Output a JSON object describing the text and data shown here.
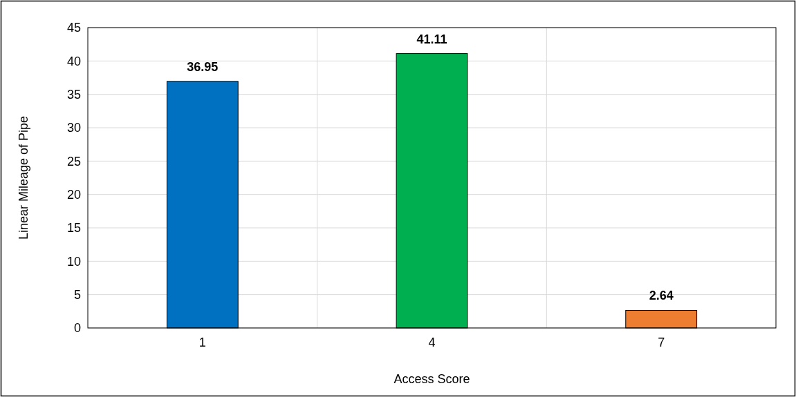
{
  "chart_data": {
    "type": "bar",
    "xlabel": "Access Score",
    "ylabel": "Linear Mileage of Pipe",
    "categories": [
      "1",
      "4",
      "7"
    ],
    "values": [
      36.95,
      41.11,
      2.64
    ],
    "colors": [
      "#0070c0",
      "#00b050",
      "#ed7d31"
    ],
    "ylim": [
      0,
      45
    ],
    "yticks": [
      0,
      5,
      10,
      15,
      20,
      25,
      30,
      35,
      40,
      45
    ],
    "grid": true,
    "data_labels": true
  }
}
